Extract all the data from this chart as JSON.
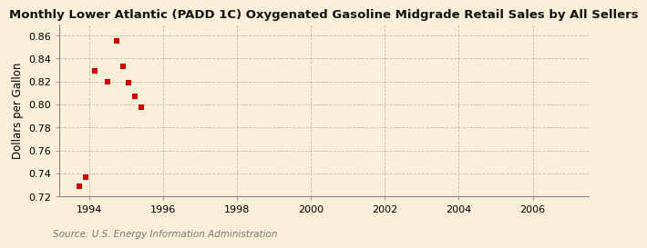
{
  "title": "Monthly Lower Atlantic (PADD 1C) Oxygenated Gasoline Midgrade Retail Sales by All Sellers",
  "ylabel": "Dollars per Gallon",
  "source": "Source: U.S. Energy Information Administration",
  "background_color": "#faefd8",
  "x_data": [
    1993.75,
    1993.92,
    1994.17,
    1994.5,
    1994.75,
    1994.92,
    1995.08,
    1995.25,
    1995.42
  ],
  "y_data": [
    0.729,
    0.737,
    0.829,
    0.82,
    0.855,
    0.833,
    0.819,
    0.807,
    0.798
  ],
  "marker_color": "#cc0000",
  "marker_size": 5,
  "xlim": [
    1993.2,
    2007.5
  ],
  "ylim": [
    0.72,
    0.87
  ],
  "xticks": [
    1994,
    1996,
    1998,
    2000,
    2002,
    2004,
    2006
  ],
  "yticks": [
    0.72,
    0.74,
    0.76,
    0.78,
    0.8,
    0.82,
    0.84,
    0.86
  ],
  "grid_color": "#b0b0b0",
  "title_fontsize": 9.5,
  "label_fontsize": 8.5,
  "tick_fontsize": 8,
  "source_fontsize": 7.5
}
